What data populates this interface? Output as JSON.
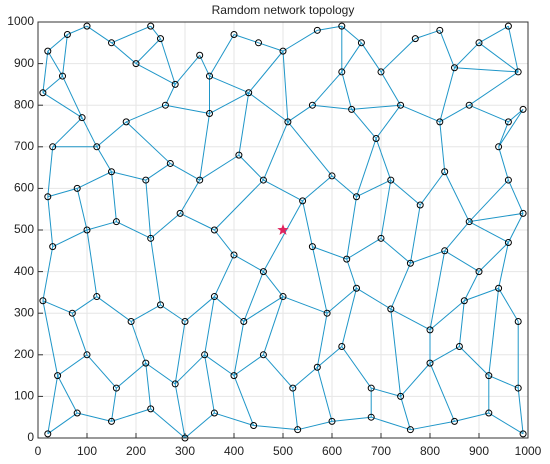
{
  "chart_data": {
    "type": "network",
    "title": "Ramdom network topology",
    "x": [
      10,
      20,
      60,
      100,
      150,
      230,
      200,
      250,
      280,
      330,
      350,
      400,
      450,
      500,
      570,
      620,
      620,
      660,
      700,
      770,
      820,
      850,
      900,
      960,
      980,
      50,
      90,
      30,
      120,
      180,
      260,
      350,
      430,
      510,
      560,
      640,
      690,
      740,
      820,
      880,
      960,
      990,
      940,
      20,
      80,
      150,
      220,
      270,
      330,
      410,
      460,
      540,
      600,
      650,
      720,
      780,
      830,
      880,
      960,
      990,
      30,
      100,
      160,
      230,
      290,
      360,
      400,
      460,
      560,
      630,
      700,
      760,
      830,
      900,
      960,
      10,
      70,
      120,
      190,
      250,
      300,
      360,
      420,
      500,
      590,
      650,
      720,
      800,
      870,
      940,
      980,
      40,
      100,
      160,
      220,
      280,
      340,
      400,
      460,
      520,
      570,
      620,
      680,
      740,
      800,
      860,
      920,
      980,
      20,
      80,
      150,
      230,
      300,
      360,
      440,
      530,
      600,
      680,
      760,
      850,
      920,
      990
    ],
    "values": [
      830,
      930,
      970,
      990,
      950,
      990,
      900,
      960,
      850,
      920,
      870,
      970,
      950,
      930,
      980,
      990,
      880,
      950,
      880,
      960,
      980,
      890,
      950,
      990,
      880,
      870,
      770,
      700,
      700,
      760,
      800,
      780,
      830,
      760,
      800,
      790,
      720,
      800,
      760,
      800,
      760,
      790,
      700,
      580,
      600,
      640,
      620,
      660,
      620,
      680,
      620,
      570,
      630,
      580,
      620,
      560,
      640,
      520,
      620,
      540,
      460,
      500,
      520,
      480,
      540,
      500,
      440,
      400,
      460,
      430,
      480,
      420,
      450,
      400,
      470,
      330,
      300,
      340,
      280,
      320,
      280,
      340,
      280,
      340,
      300,
      360,
      310,
      260,
      330,
      360,
      280,
      150,
      200,
      120,
      180,
      130,
      200,
      150,
      200,
      120,
      170,
      220,
      120,
      100,
      180,
      220,
      150,
      120,
      10,
      60,
      40,
      70,
      0,
      60,
      30,
      20,
      40,
      50,
      20,
      40,
      60,
      10
    ],
    "edges": [
      [
        0,
        1
      ],
      [
        1,
        2
      ],
      [
        2,
        3
      ],
      [
        3,
        4
      ],
      [
        4,
        5
      ],
      [
        5,
        7
      ],
      [
        4,
        6
      ],
      [
        6,
        7
      ],
      [
        7,
        8
      ],
      [
        6,
        8
      ],
      [
        8,
        9
      ],
      [
        9,
        10
      ],
      [
        10,
        11
      ],
      [
        11,
        12
      ],
      [
        12,
        13
      ],
      [
        13,
        14
      ],
      [
        14,
        15
      ],
      [
        15,
        16
      ],
      [
        15,
        17
      ],
      [
        16,
        17
      ],
      [
        17,
        18
      ],
      [
        18,
        19
      ],
      [
        19,
        20
      ],
      [
        20,
        21
      ],
      [
        21,
        22
      ],
      [
        22,
        23
      ],
      [
        23,
        24
      ],
      [
        22,
        24
      ],
      [
        1,
        25
      ],
      [
        0,
        25
      ],
      [
        25,
        2
      ],
      [
        21,
        24
      ],
      [
        0,
        26
      ],
      [
        25,
        26
      ],
      [
        26,
        27
      ],
      [
        26,
        28
      ],
      [
        27,
        28
      ],
      [
        28,
        29
      ],
      [
        29,
        30
      ],
      [
        30,
        8
      ],
      [
        30,
        31
      ],
      [
        31,
        10
      ],
      [
        31,
        32
      ],
      [
        32,
        10
      ],
      [
        32,
        33
      ],
      [
        33,
        34
      ],
      [
        34,
        16
      ],
      [
        34,
        35
      ],
      [
        35,
        16
      ],
      [
        35,
        36
      ],
      [
        35,
        37
      ],
      [
        37,
        18
      ],
      [
        37,
        38
      ],
      [
        38,
        21
      ],
      [
        38,
        39
      ],
      [
        39,
        40
      ],
      [
        40,
        41
      ],
      [
        39,
        24
      ],
      [
        40,
        42
      ],
      [
        41,
        42
      ],
      [
        36,
        37
      ],
      [
        32,
        13
      ],
      [
        33,
        13
      ],
      [
        27,
        43
      ],
      [
        43,
        44
      ],
      [
        44,
        45
      ],
      [
        28,
        45
      ],
      [
        45,
        46
      ],
      [
        46,
        47
      ],
      [
        29,
        47
      ],
      [
        47,
        48
      ],
      [
        48,
        31
      ],
      [
        48,
        49
      ],
      [
        49,
        32
      ],
      [
        49,
        50
      ],
      [
        50,
        33
      ],
      [
        50,
        51
      ],
      [
        51,
        52
      ],
      [
        52,
        33
      ],
      [
        52,
        53
      ],
      [
        53,
        36
      ],
      [
        53,
        54
      ],
      [
        54,
        36
      ],
      [
        54,
        55
      ],
      [
        55,
        56
      ],
      [
        56,
        38
      ],
      [
        56,
        57
      ],
      [
        57,
        58
      ],
      [
        58,
        42
      ],
      [
        58,
        59
      ],
      [
        59,
        57
      ],
      [
        43,
        60
      ],
      [
        44,
        61
      ],
      [
        60,
        61
      ],
      [
        61,
        62
      ],
      [
        62,
        45
      ],
      [
        62,
        63
      ],
      [
        63,
        46
      ],
      [
        63,
        64
      ],
      [
        64,
        48
      ],
      [
        64,
        65
      ],
      [
        65,
        50
      ],
      [
        65,
        66
      ],
      [
        66,
        67
      ],
      [
        67,
        51
      ],
      [
        51,
        68
      ],
      [
        68,
        69
      ],
      [
        69,
        53
      ],
      [
        69,
        70
      ],
      [
        70,
        54
      ],
      [
        70,
        71
      ],
      [
        71,
        55
      ],
      [
        71,
        72
      ],
      [
        72,
        57
      ],
      [
        72,
        73
      ],
      [
        73,
        74
      ],
      [
        74,
        59
      ],
      [
        74,
        57
      ],
      [
        60,
        75
      ],
      [
        75,
        76
      ],
      [
        76,
        77
      ],
      [
        77,
        61
      ],
      [
        77,
        78
      ],
      [
        78,
        79
      ],
      [
        79,
        63
      ],
      [
        79,
        80
      ],
      [
        80,
        81
      ],
      [
        81,
        66
      ],
      [
        81,
        82
      ],
      [
        82,
        67
      ],
      [
        82,
        83
      ],
      [
        83,
        67
      ],
      [
        83,
        84
      ],
      [
        84,
        68
      ],
      [
        84,
        85
      ],
      [
        85,
        69
      ],
      [
        85,
        86
      ],
      [
        86,
        71
      ],
      [
        86,
        87
      ],
      [
        87,
        72
      ],
      [
        87,
        88
      ],
      [
        88,
        73
      ],
      [
        88,
        89
      ],
      [
        89,
        74
      ],
      [
        89,
        90
      ],
      [
        75,
        91
      ],
      [
        91,
        92
      ],
      [
        92,
        76
      ],
      [
        92,
        93
      ],
      [
        93,
        94
      ],
      [
        94,
        78
      ],
      [
        94,
        95
      ],
      [
        95,
        80
      ],
      [
        95,
        96
      ],
      [
        96,
        81
      ],
      [
        96,
        97
      ],
      [
        97,
        82
      ],
      [
        97,
        98
      ],
      [
        98,
        83
      ],
      [
        98,
        99
      ],
      [
        99,
        100
      ],
      [
        100,
        84
      ],
      [
        100,
        101
      ],
      [
        101,
        85
      ],
      [
        101,
        102
      ],
      [
        102,
        103
      ],
      [
        103,
        86
      ],
      [
        103,
        104
      ],
      [
        104,
        87
      ],
      [
        104,
        105
      ],
      [
        105,
        88
      ],
      [
        105,
        106
      ],
      [
        106,
        107
      ],
      [
        107,
        90
      ],
      [
        106,
        89
      ],
      [
        91,
        108
      ],
      [
        108,
        109
      ],
      [
        109,
        91
      ],
      [
        109,
        110
      ],
      [
        110,
        93
      ],
      [
        110,
        111
      ],
      [
        111,
        94
      ],
      [
        111,
        112
      ],
      [
        112,
        95
      ],
      [
        112,
        113
      ],
      [
        113,
        96
      ],
      [
        113,
        114
      ],
      [
        114,
        97
      ],
      [
        114,
        115
      ],
      [
        115,
        99
      ],
      [
        115,
        116
      ],
      [
        116,
        100
      ],
      [
        116,
        117
      ],
      [
        117,
        102
      ],
      [
        117,
        118
      ],
      [
        118,
        103
      ],
      [
        118,
        119
      ],
      [
        119,
        104
      ],
      [
        119,
        120
      ],
      [
        120,
        106
      ],
      [
        120,
        121
      ],
      [
        121,
        107
      ]
    ],
    "edge_color": "#1f96c8",
    "marker_color": "#000000",
    "sink": {
      "x": 500,
      "y": 500,
      "color": "#e0245e"
    },
    "xlim": [
      0,
      1000
    ],
    "ylim": [
      0,
      1000
    ],
    "xticks": [
      0,
      100,
      200,
      300,
      400,
      500,
      600,
      700,
      800,
      900,
      1000
    ],
    "yticks": [
      0,
      100,
      200,
      300,
      400,
      500,
      600,
      700,
      800,
      900,
      1000
    ],
    "grid": true
  }
}
